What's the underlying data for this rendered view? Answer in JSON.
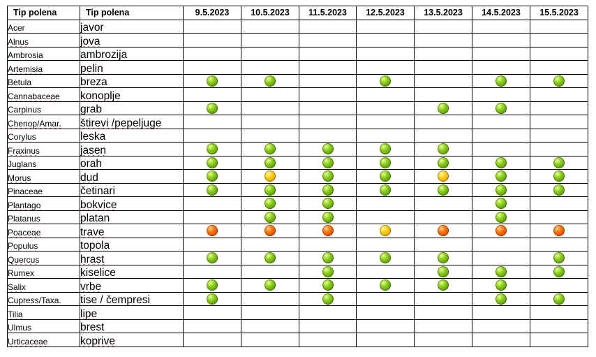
{
  "colors": {
    "green": "#6fb80f",
    "yellow": "#ffc80a",
    "orange": "#ff5a00"
  },
  "headers": {
    "col1": "Tip polena",
    "col2": "Tip polena",
    "dates": [
      "9.5.2023",
      "10.5.2023",
      "11.5.2023",
      "12.5.2023",
      "13.5.2023",
      "14.5.2023",
      "15.5.2023"
    ]
  },
  "rows": [
    {
      "latin": "Acer",
      "local": "javor",
      "levels": [
        "",
        "",
        "",
        "",
        "",
        "",
        ""
      ]
    },
    {
      "latin": "Alnus",
      "local": "jova",
      "levels": [
        "",
        "",
        "",
        "",
        "",
        "",
        ""
      ]
    },
    {
      "latin": "Ambrosia",
      "local": "ambrozija",
      "levels": [
        "",
        "",
        "",
        "",
        "",
        "",
        ""
      ]
    },
    {
      "latin": "Artemisia",
      "local": "pelin",
      "levels": [
        "",
        "",
        "",
        "",
        "",
        "",
        ""
      ]
    },
    {
      "latin": "Betula",
      "local": "breza",
      "levels": [
        "green",
        "green",
        "",
        "green",
        "",
        "green",
        "green"
      ]
    },
    {
      "latin": "Cannabaceae",
      "local": "konoplje",
      "levels": [
        "",
        "",
        "",
        "",
        "",
        "",
        ""
      ]
    },
    {
      "latin": "Carpinus",
      "local": "grab",
      "levels": [
        "green",
        "",
        "",
        "",
        "green",
        "green",
        ""
      ]
    },
    {
      "latin": "Chenop/Amar.",
      "local": "štirevi /pepeljuge",
      "levels": [
        "",
        "",
        "",
        "",
        "",
        "",
        ""
      ]
    },
    {
      "latin": "Corylus",
      "local": "leska",
      "levels": [
        "",
        "",
        "",
        "",
        "",
        "",
        ""
      ]
    },
    {
      "latin": "Fraxinus",
      "local": "jasen",
      "levels": [
        "green",
        "green",
        "green",
        "green",
        "green",
        "",
        ""
      ]
    },
    {
      "latin": "Juglans",
      "local": "orah",
      "levels": [
        "green",
        "green",
        "green",
        "green",
        "green",
        "green",
        "green"
      ]
    },
    {
      "latin": "Morus",
      "local": "dud",
      "levels": [
        "green",
        "yellow",
        "green",
        "green",
        "yellow",
        "green",
        "green"
      ]
    },
    {
      "latin": "Pinaceae",
      "local": "četinari",
      "levels": [
        "green",
        "green",
        "green",
        "green",
        "green",
        "green",
        "green"
      ]
    },
    {
      "latin": "Plantago",
      "local": "bokvice",
      "levels": [
        "",
        "green",
        "green",
        "",
        "",
        "green",
        ""
      ]
    },
    {
      "latin": "Platanus",
      "local": "platan",
      "levels": [
        "",
        "green",
        "green",
        "",
        "",
        "green",
        ""
      ]
    },
    {
      "latin": "Poaceae",
      "local": "trave",
      "levels": [
        "orange",
        "orange",
        "orange",
        "yellow",
        "orange",
        "orange",
        "orange"
      ]
    },
    {
      "latin": "Populus",
      "local": "topola",
      "levels": [
        "",
        "",
        "",
        "",
        "",
        "",
        ""
      ]
    },
    {
      "latin": "Quercus",
      "local": "hrast",
      "levels": [
        "green",
        "green",
        "green",
        "green",
        "green",
        "",
        "green"
      ]
    },
    {
      "latin": "Rumex",
      "local": "kiselice",
      "levels": [
        "",
        "",
        "green",
        "",
        "green",
        "green",
        "green"
      ]
    },
    {
      "latin": "Salix",
      "local": "vrbe",
      "levels": [
        "green",
        "green",
        "green",
        "green",
        "green",
        "green",
        ""
      ]
    },
    {
      "latin": "Cupress/Taxa.",
      "local": "tise / čempresi",
      "levels": [
        "green",
        "",
        "green",
        "",
        "",
        "green",
        "green"
      ]
    },
    {
      "latin": "Tilia",
      "local": "lipe",
      "levels": [
        "",
        "",
        "",
        "",
        "",
        "",
        ""
      ]
    },
    {
      "latin": "Ulmus",
      "local": "brest",
      "levels": [
        "",
        "",
        "",
        "",
        "",
        "",
        ""
      ]
    },
    {
      "latin": "Urticaceae",
      "local": "koprive",
      "levels": [
        "",
        "",
        "",
        "",
        "",
        "",
        ""
      ]
    }
  ]
}
